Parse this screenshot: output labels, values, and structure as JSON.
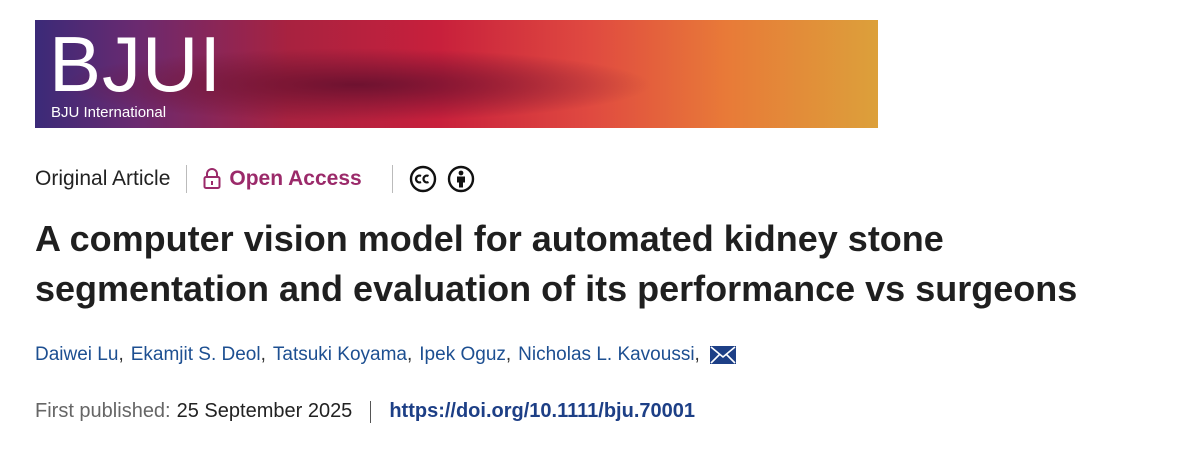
{
  "banner": {
    "logo": "BJUI",
    "subtitle": "BJU International"
  },
  "meta": {
    "article_type": "Original Article",
    "access": "Open Access"
  },
  "title_lines": [
    "A computer vision model for automated kidney stone",
    "segmentation and evaluation of its performance vs surgeons"
  ],
  "authors": [
    "Daiwei Lu",
    "Ekamjit S. Deol",
    "Tatsuki Koyama",
    "Ipek Oguz",
    "Nicholas L. Kavoussi"
  ],
  "publication": {
    "label": "First published:",
    "date": "25 September 2025",
    "doi": "https://doi.org/10.1111/bju.70001"
  }
}
